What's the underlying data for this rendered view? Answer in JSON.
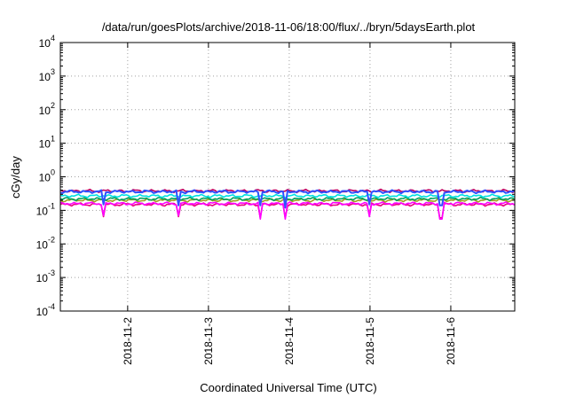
{
  "chart_data": {
    "type": "line",
    "title": "/data/run/goesPlots/archive/2018-11-06/18:00/flux/../bryn/5daysEarth.plot",
    "xlabel": "Coordinated Universal Time (UTC)",
    "ylabel": "cGy/day",
    "yscale": "log",
    "ylim": [
      0.0001,
      10000
    ],
    "xlim": [
      "2018-11-01T04:00",
      "2018-11-06T19:00"
    ],
    "grid": true,
    "x_ticks": [
      "2018-11-2",
      "2018-11-3",
      "2018-11-4",
      "2018-11-5",
      "2018-11-6"
    ],
    "y_ticks": [
      {
        "base": "10",
        "exp": "-4",
        "value": 0.0001
      },
      {
        "base": "10",
        "exp": "-3",
        "value": 0.001
      },
      {
        "base": "10",
        "exp": "-2",
        "value": 0.01
      },
      {
        "base": "10",
        "exp": "-1",
        "value": 0.1
      },
      {
        "base": "10",
        "exp": "0",
        "value": 1
      },
      {
        "base": "10",
        "exp": "1",
        "value": 10
      },
      {
        "base": "10",
        "exp": "2",
        "value": 100
      },
      {
        "base": "10",
        "exp": "3",
        "value": 1000
      },
      {
        "base": "10",
        "exp": "4",
        "value": 10000
      }
    ],
    "series": [
      {
        "color": "#e8007d",
        "level": 0.15,
        "dips": [
          {
            "x": "2018-11-01T17:00",
            "y": 0.065
          },
          {
            "x": "2018-11-02T15:00",
            "y": 0.065
          },
          {
            "x": "2018-11-03T15:30",
            "y": 0.06
          },
          {
            "x": "2018-11-03T23:00",
            "y": 0.06
          },
          {
            "x": "2018-11-05T00:00",
            "y": 0.07
          },
          {
            "x": "2018-11-05T21:00",
            "y": 0.06
          }
        ]
      },
      {
        "color": "#ff00ff",
        "level": 0.16,
        "dips": [
          {
            "x": "2018-11-01T17:00",
            "y": 0.07
          },
          {
            "x": "2018-11-02T15:00",
            "y": 0.07
          },
          {
            "x": "2018-11-03T15:30",
            "y": 0.055
          },
          {
            "x": "2018-11-03T23:00",
            "y": 0.055
          },
          {
            "x": "2018-11-05T00:00",
            "y": 0.065
          },
          {
            "x": "2018-11-05T21:00",
            "y": 0.055
          }
        ]
      },
      {
        "color": "#a0a020",
        "level": 0.2,
        "dips": []
      },
      {
        "color": "#00a060",
        "level": 0.22,
        "dips": []
      },
      {
        "color": "#00e0e0",
        "level": 0.27,
        "dips": []
      },
      {
        "color": "#c00060",
        "level": 0.38,
        "dips": []
      },
      {
        "color": "#3050ff",
        "level": 0.36,
        "dips": [
          {
            "x": "2018-11-01T17:00",
            "y": 0.15
          },
          {
            "x": "2018-11-02T15:00",
            "y": 0.14
          },
          {
            "x": "2018-11-03T15:30",
            "y": 0.14
          },
          {
            "x": "2018-11-03T23:00",
            "y": 0.12
          },
          {
            "x": "2018-11-05T00:00",
            "y": 0.15
          },
          {
            "x": "2018-11-05T21:00",
            "y": 0.14
          }
        ]
      }
    ]
  }
}
